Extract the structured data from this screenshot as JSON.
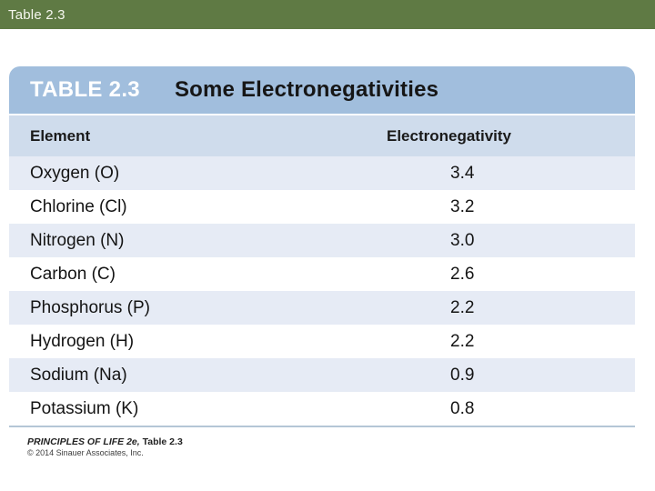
{
  "window": {
    "title": "Table 2.3"
  },
  "table": {
    "label": "TABLE 2.3",
    "title": "Some Electronegativities",
    "columns": [
      "Element",
      "Electronegativity"
    ],
    "rows": [
      {
        "element": "Oxygen (O)",
        "value": "3.4"
      },
      {
        "element": "Chlorine (Cl)",
        "value": "3.2"
      },
      {
        "element": "Nitrogen (N)",
        "value": "3.0"
      },
      {
        "element": "Carbon (C)",
        "value": "2.6"
      },
      {
        "element": "Phosphorus (P)",
        "value": "2.2"
      },
      {
        "element": "Hydrogen (H)",
        "value": "2.2"
      },
      {
        "element": "Sodium (Na)",
        "value": "0.9"
      },
      {
        "element": "Potassium (K)",
        "value": "0.8"
      }
    ]
  },
  "credit": {
    "source_italic": "PRINCIPLES OF LIFE 2e,",
    "source_rest": " Table 2.3",
    "copyright": "© 2014 Sinauer Associates, Inc."
  },
  "colors": {
    "titlebar_bg": "#5f7a44",
    "table_header_bg": "#a1bedd",
    "column_header_bg": "#cfdcec",
    "row_shaded_bg": "#e6ebf5",
    "bottom_rule": "#b4c6d6"
  },
  "chart_data": {
    "type": "table",
    "title": "TABLE 2.3  Some Electronegativities",
    "columns": [
      "Element",
      "Electronegativity"
    ],
    "rows": [
      [
        "Oxygen (O)",
        3.4
      ],
      [
        "Chlorine (Cl)",
        3.2
      ],
      [
        "Nitrogen (N)",
        3.0
      ],
      [
        "Carbon (C)",
        2.6
      ],
      [
        "Phosphorus (P)",
        2.2
      ],
      [
        "Hydrogen (H)",
        2.2
      ],
      [
        "Sodium (Na)",
        0.9
      ],
      [
        "Potassium (K)",
        0.8
      ]
    ]
  }
}
